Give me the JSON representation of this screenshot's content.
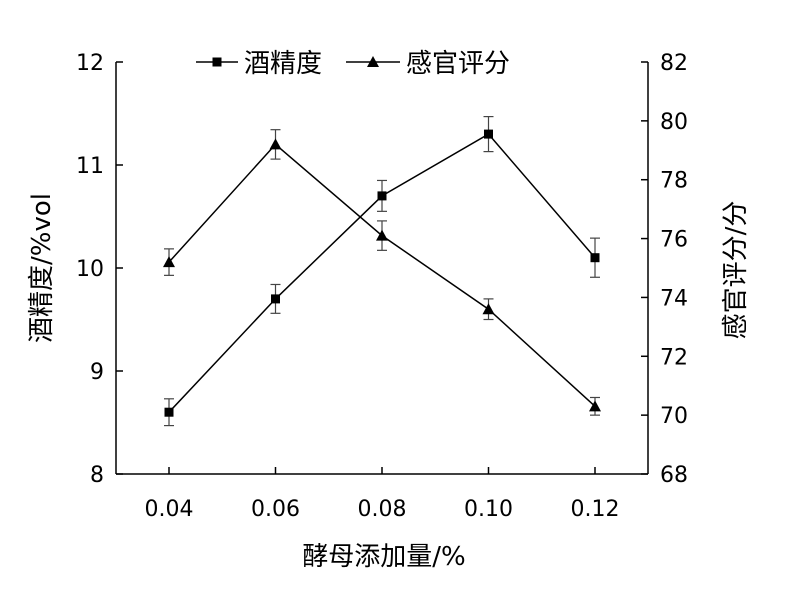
{
  "chart_data": {
    "type": "line",
    "x": [
      "0.04",
      "0.06",
      "0.08",
      "0.10",
      "0.12"
    ],
    "xlabel": "酵母添加量/%",
    "ylabel_left": "酒精度/%vol",
    "ylabel_right": "感官评分/分",
    "ylim_left": [
      8,
      12
    ],
    "ylim_right": [
      68,
      82
    ],
    "yticks_left": [
      "8",
      "9",
      "10",
      "11",
      "12"
    ],
    "yticks_right": [
      "68",
      "70",
      "72",
      "74",
      "76",
      "78",
      "80",
      "82"
    ],
    "legend_position": "top",
    "grid": false,
    "series": [
      {
        "name": "酒精度",
        "axis": "left",
        "marker": "square",
        "values": [
          8.6,
          9.7,
          10.7,
          11.3,
          10.1
        ],
        "errors": [
          0.13,
          0.14,
          0.15,
          0.17,
          0.19
        ]
      },
      {
        "name": "感官评分",
        "axis": "right",
        "marker": "triangle",
        "values": [
          75.2,
          79.2,
          76.1,
          73.6,
          70.3
        ],
        "errors": [
          0.45,
          0.5,
          0.5,
          0.35,
          0.3
        ]
      }
    ],
    "legend": [
      "酒精度",
      "感官评分"
    ]
  }
}
